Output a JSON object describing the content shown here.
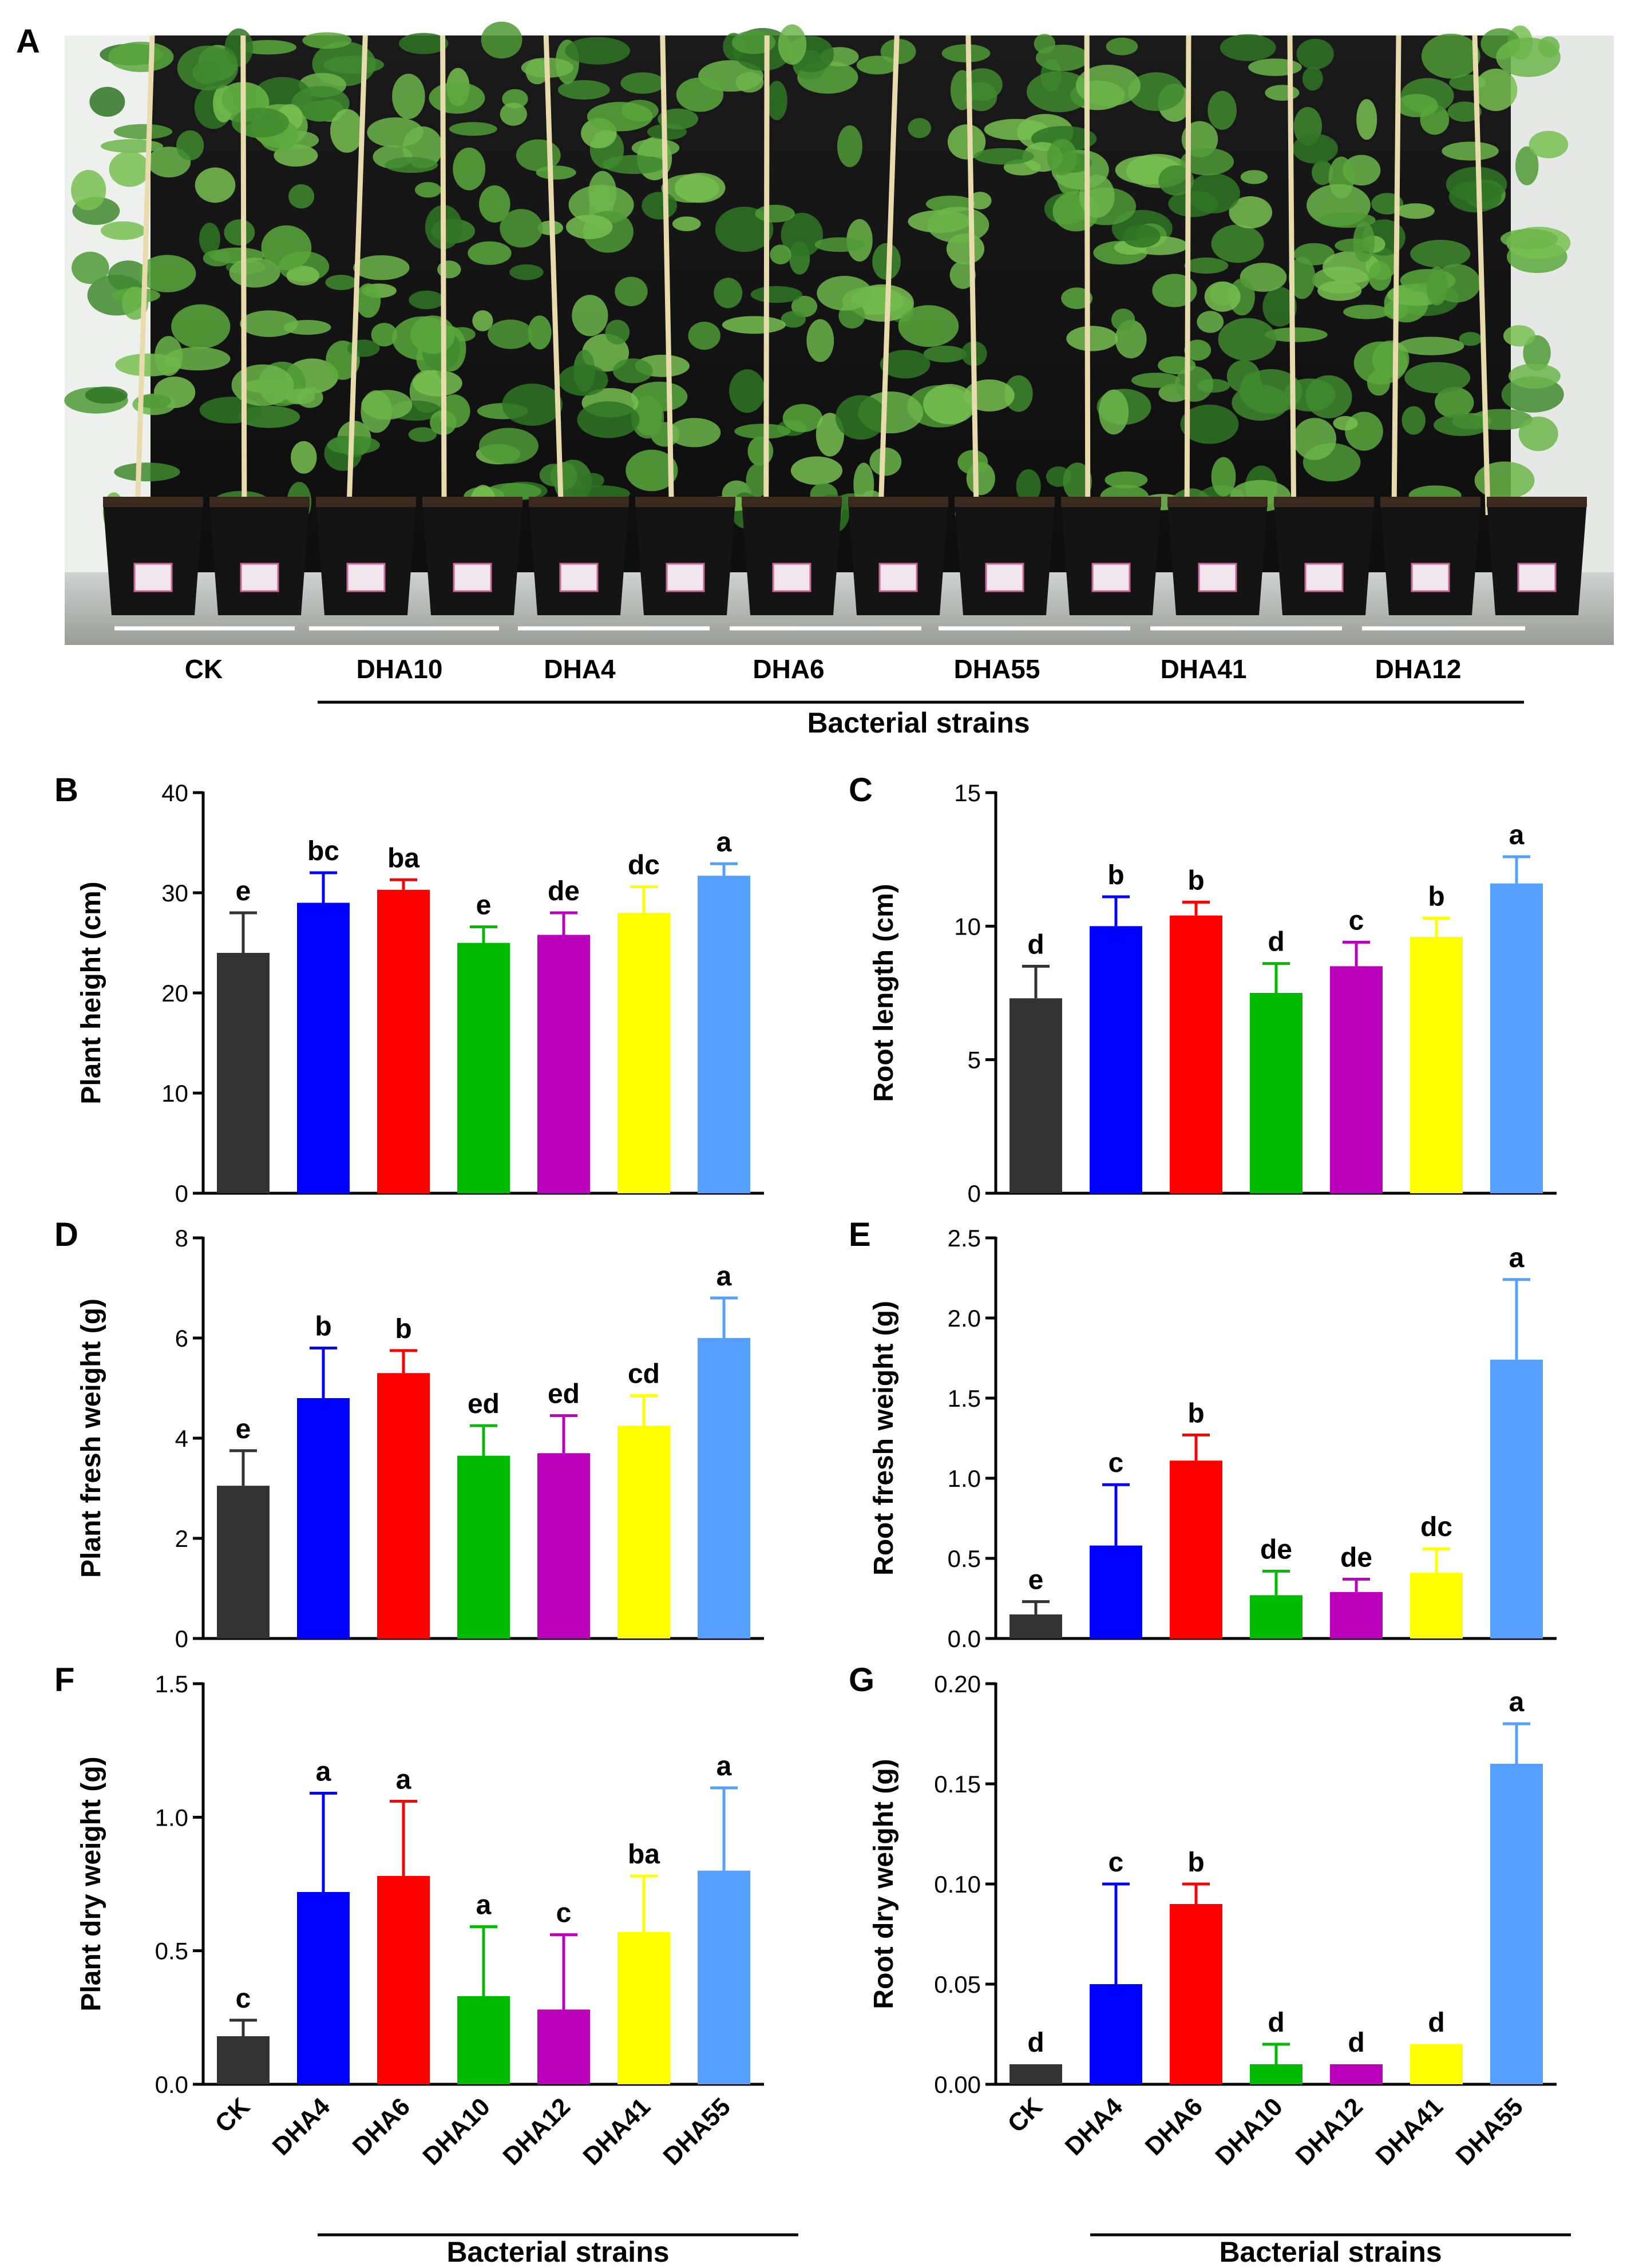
{
  "panel_labels": [
    "A",
    "B",
    "C",
    "D",
    "E",
    "F",
    "G"
  ],
  "photo": {
    "description_groups": [
      "CK",
      "DHA10",
      "DHA4",
      "DHA6",
      "DHA55",
      "DHA41",
      "DHA12"
    ],
    "axis_label": "Bacterial strains"
  },
  "colors": {
    "CK": "#333333",
    "DHA4": "#0000ff",
    "DHA6": "#ff0000",
    "DHA10": "#00bb00",
    "DHA12": "#bb00bb",
    "DHA41": "#ffff00",
    "DHA55": "#55a0ff"
  },
  "bottom_labels": {
    "left": "Bacterial strains",
    "right": "Bacterial strains"
  },
  "chart_data": [
    {
      "panel": "B",
      "type": "bar",
      "categories": [
        "CK",
        "DHA4",
        "DHA6",
        "DHA10",
        "DHA12",
        "DHA41",
        "DHA55"
      ],
      "values": [
        24.0,
        29.0,
        30.3,
        25.0,
        25.8,
        28.0,
        31.7
      ],
      "errors": [
        4.0,
        3.0,
        1.0,
        1.6,
        2.2,
        2.6,
        1.2
      ],
      "letters": [
        "e",
        "bc",
        "ba",
        "e",
        "de",
        "dc",
        "a"
      ],
      "ylabel": "Plant height (cm)",
      "ylim": [
        0,
        40
      ],
      "yticks": [
        "0",
        "10",
        "20",
        "30",
        "40"
      ]
    },
    {
      "panel": "C",
      "type": "bar",
      "categories": [
        "CK",
        "DHA4",
        "DHA6",
        "DHA10",
        "DHA12",
        "DHA41",
        "DHA55"
      ],
      "values": [
        7.3,
        10.0,
        10.4,
        7.5,
        8.5,
        9.6,
        11.6
      ],
      "errors": [
        1.2,
        1.1,
        0.5,
        1.1,
        0.9,
        0.7,
        1.0
      ],
      "letters": [
        "d",
        "b",
        "b",
        "d",
        "c",
        "b",
        "a"
      ],
      "ylabel": "Root length (cm)",
      "ylim": [
        0,
        15
      ],
      "yticks": [
        "0",
        "5",
        "10",
        "15"
      ]
    },
    {
      "panel": "D",
      "type": "bar",
      "categories": [
        "CK",
        "DHA4",
        "DHA6",
        "DHA10",
        "DHA12",
        "DHA41",
        "DHA55"
      ],
      "values": [
        3.05,
        4.8,
        5.3,
        3.65,
        3.7,
        4.25,
        6.0
      ],
      "errors": [
        0.7,
        1.0,
        0.45,
        0.6,
        0.75,
        0.6,
        0.8
      ],
      "letters": [
        "e",
        "b",
        "b",
        "ed",
        "ed",
        "cd",
        "a"
      ],
      "ylabel": "Plant fresh weight (g)",
      "ylim": [
        0,
        8
      ],
      "yticks": [
        "0",
        "2",
        "4",
        "6",
        "8"
      ]
    },
    {
      "panel": "E",
      "type": "bar",
      "categories": [
        "CK",
        "DHA4",
        "DHA6",
        "DHA10",
        "DHA12",
        "DHA41",
        "DHA55"
      ],
      "values": [
        0.15,
        0.58,
        1.11,
        0.27,
        0.29,
        0.41,
        1.74
      ],
      "errors": [
        0.08,
        0.38,
        0.16,
        0.15,
        0.08,
        0.15,
        0.5
      ],
      "letters": [
        "e",
        "c",
        "b",
        "de",
        "de",
        "dc",
        "a"
      ],
      "ylabel": "Root fresh weight (g)",
      "ylim": [
        0,
        2.5
      ],
      "yticks": [
        "0.0",
        "0.5",
        "1.0",
        "1.5",
        "2.0",
        "2.5"
      ]
    },
    {
      "panel": "F",
      "type": "bar",
      "categories": [
        "CK",
        "DHA4",
        "DHA6",
        "DHA10",
        "DHA12",
        "DHA41",
        "DHA55"
      ],
      "values": [
        0.18,
        0.72,
        0.78,
        0.33,
        0.28,
        0.57,
        0.8
      ],
      "errors": [
        0.06,
        0.37,
        0.28,
        0.26,
        0.28,
        0.21,
        0.31
      ],
      "letters": [
        "c",
        "a",
        "a",
        "a",
        "c",
        "ba",
        "a"
      ],
      "ylabel": "Plant dry weight (g)",
      "ylim": [
        0,
        1.5
      ],
      "yticks": [
        "0.0",
        "0.5",
        "1.0",
        "1.5"
      ]
    },
    {
      "panel": "G",
      "type": "bar",
      "categories": [
        "CK",
        "DHA4",
        "DHA6",
        "DHA10",
        "DHA12",
        "DHA41",
        "DHA55"
      ],
      "values": [
        0.01,
        0.05,
        0.09,
        0.01,
        0.01,
        0.02,
        0.16
      ],
      "errors": [
        0.0,
        0.05,
        0.01,
        0.01,
        0.0,
        0.0,
        0.02
      ],
      "letters": [
        "d",
        "c",
        "b",
        "d",
        "d",
        "d",
        "a"
      ],
      "ylabel": "Root dry weight (g)",
      "ylim": [
        0,
        0.2
      ],
      "yticks": [
        "0.00",
        "0.05",
        "0.10",
        "0.15",
        "0.20"
      ]
    }
  ]
}
